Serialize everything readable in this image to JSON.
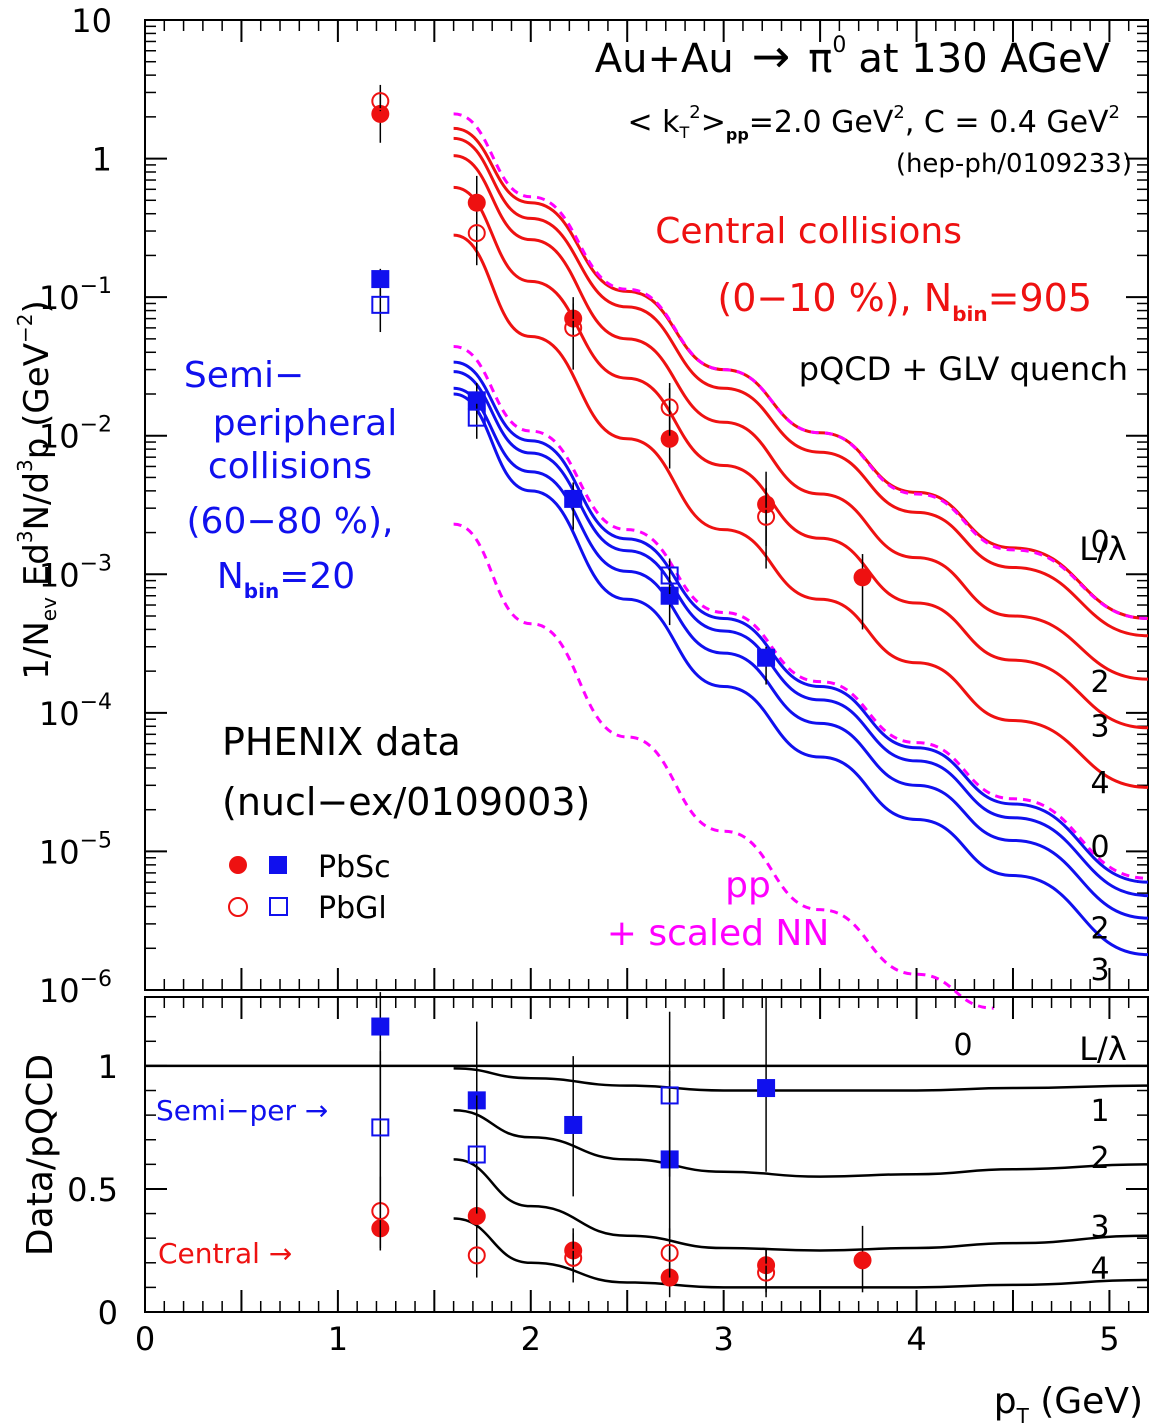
{
  "chart_data": [
    {
      "type": "scatter",
      "yscale": "log",
      "ylim_exp": [
        -6,
        1
      ],
      "xlim": [
        0,
        5.2
      ],
      "title": "Au+Au → π⁰ at 130 AGeV",
      "title_parts": {
        "lhs": "Au+Au",
        "arrow": "→",
        "particle": "π",
        "particle_sup": "0",
        "rest": "at 130 AGeV"
      },
      "kt_parts": {
        "open": "< k",
        "sub": "T",
        "sup": "2",
        "close": ">",
        "pp": "pp",
        "val": "=2.0 GeV",
        "val_sup": "2",
        "mid": ", C = 0.4 GeV",
        "end_sup": "2"
      },
      "ref_theory": "(hep-ph/0109233)",
      "ylabel": {
        "a": "1/N",
        "a_sub": "ev",
        "b": "  Ed",
        "b_sup": "3",
        "c": "N/d",
        "c_sup": "3",
        "d": "p  (GeV",
        "d_sup": "−2",
        "e": ")"
      },
      "y_tick_labels": [
        {
          "exp": 1,
          "base": "10",
          "sup": ""
        },
        {
          "exp": 0,
          "base": "1",
          "sup": ""
        },
        {
          "exp": -1,
          "base": "10",
          "sup": "−1"
        },
        {
          "exp": -2,
          "base": "10",
          "sup": "−2"
        },
        {
          "exp": -3,
          "base": "10",
          "sup": "−3"
        },
        {
          "exp": -4,
          "base": "10",
          "sup": "−4"
        },
        {
          "exp": -5,
          "base": "10",
          "sup": "−5"
        },
        {
          "exp": -6,
          "base": "10",
          "sup": "−6"
        }
      ],
      "annotations": {
        "central_line1": "Central collisions",
        "central_line2_a": "(0−10 %), N",
        "central_line2_sub": "bin",
        "central_line2_b": "=905",
        "model": "pQCD + GLV quench",
        "semi_1": "Semi−",
        "semi_2": "peripheral",
        "semi_3": "collisions",
        "semi_4": "(60−80 %),",
        "semi_5a": "N",
        "semi_5sub": "bin",
        "semi_5b": "=20",
        "phenix": "PHENIX data",
        "phenix_ref": "(nucl−ex/0109003)",
        "legend_pbsc": "PbSc",
        "legend_pbgl": "PbGl",
        "pp_1": "pp",
        "pp_2": "+ scaled NN",
        "l_lambda": "L/λ",
        "curve_labels": [
          {
            "text": "0",
            "y_exp": -2.76
          },
          {
            "text": "2",
            "y_exp": -3.77
          },
          {
            "text": "3",
            "y_exp": -4.09
          },
          {
            "text": "4",
            "y_exp": -4.5
          },
          {
            "text": "0",
            "y_exp": -4.96
          },
          {
            "text": "2",
            "y_exp": -5.55
          },
          {
            "text": "3",
            "y_exp": -5.85
          }
        ]
      },
      "colors": {
        "central": "#ee1111",
        "semi": "#1010ee",
        "pp": "#ff00ff",
        "axis": "#000000"
      },
      "series": [
        {
          "name": "Central PbSc",
          "marker": "filled-circle",
          "color": "#ee1111",
          "points": [
            {
              "x": 1.22,
              "y": 2.1,
              "lo": 1.3,
              "hi": 3.4
            },
            {
              "x": 1.72,
              "y": 0.48,
              "lo": 0.3,
              "hi": 0.75
            },
            {
              "x": 2.22,
              "y": 0.07,
              "lo": 0.05,
              "hi": 0.1
            },
            {
              "x": 2.72,
              "y": 0.0095,
              "lo": 0.0058,
              "hi": 0.022
            },
            {
              "x": 3.22,
              "y": 0.0032,
              "lo": 0.0011,
              "hi": 0.0055
            },
            {
              "x": 3.72,
              "y": 0.00095,
              "lo": 0.0004,
              "hi": 0.0014
            }
          ]
        },
        {
          "name": "Central PbGl",
          "marker": "open-circle",
          "color": "#ee1111",
          "points": [
            {
              "x": 1.22,
              "y": 2.6,
              "lo": 2.2,
              "hi": 3.1
            },
            {
              "x": 1.72,
              "y": 0.29,
              "lo": 0.17,
              "hi": 0.4
            },
            {
              "x": 2.22,
              "y": 0.06,
              "lo": 0.03,
              "hi": 0.09
            },
            {
              "x": 2.72,
              "y": 0.016,
              "lo": 0.01,
              "hi": 0.024
            },
            {
              "x": 3.22,
              "y": 0.0026,
              "lo": 0.0016,
              "hi": 0.0042
            }
          ]
        },
        {
          "name": "Semi-peripheral PbSc",
          "marker": "filled-square",
          "color": "#1010ee",
          "points": [
            {
              "x": 1.22,
              "y": 0.135,
              "lo": 0.1,
              "hi": 0.16
            },
            {
              "x": 1.72,
              "y": 0.018,
              "lo": 0.012,
              "hi": 0.024
            },
            {
              "x": 2.22,
              "y": 0.0035,
              "lo": 0.0021,
              "hi": 0.0046
            },
            {
              "x": 2.72,
              "y": 0.0007,
              "lo": 0.00043,
              "hi": 0.00095
            },
            {
              "x": 3.22,
              "y": 0.00025,
              "lo": 0.00016,
              "hi": 0.0003
            }
          ]
        },
        {
          "name": "Semi-peripheral PbGl",
          "marker": "open-square",
          "color": "#1010ee",
          "points": [
            {
              "x": 1.22,
              "y": 0.088,
              "lo": 0.056,
              "hi": 0.115
            },
            {
              "x": 1.72,
              "y": 0.0135,
              "lo": 0.0095,
              "hi": 0.017
            },
            {
              "x": 2.72,
              "y": 0.00098,
              "lo": 0.00072,
              "hi": 0.0013
            }
          ]
        }
      ],
      "curves": [
        {
          "group": "central",
          "label": "0",
          "style": "solid",
          "x": [
            1.6,
            2.0,
            2.5,
            3.0,
            3.5,
            4.0,
            4.5,
            5.2
          ],
          "y": [
            1.65,
            0.48,
            0.11,
            0.03,
            0.0105,
            0.0039,
            0.00155,
            0.00048
          ]
        },
        {
          "group": "central",
          "label": "",
          "style": "solid",
          "x": [
            1.6,
            2.0,
            2.5,
            3.0,
            3.5,
            4.0,
            4.5,
            5.2
          ],
          "y": [
            1.4,
            0.37,
            0.085,
            0.022,
            0.0076,
            0.0028,
            0.00112,
            0.00036
          ]
        },
        {
          "group": "central",
          "label": "2",
          "style": "solid",
          "x": [
            1.6,
            2.0,
            2.5,
            3.0,
            3.5,
            4.0,
            4.5,
            5.2
          ],
          "y": [
            1.05,
            0.26,
            0.05,
            0.0125,
            0.0038,
            0.00132,
            0.0005,
            0.000175
          ]
        },
        {
          "group": "central",
          "label": "3",
          "style": "solid",
          "x": [
            1.6,
            2.0,
            2.5,
            3.0,
            3.5,
            4.0,
            4.5,
            5.2
          ],
          "y": [
            0.62,
            0.13,
            0.026,
            0.0061,
            0.00182,
            0.00062,
            0.00024,
            7.8e-05
          ]
        },
        {
          "group": "central",
          "label": "4",
          "style": "solid",
          "x": [
            1.6,
            2.0,
            2.5,
            3.0,
            3.5,
            4.0,
            4.5,
            5.2
          ],
          "y": [
            0.28,
            0.052,
            0.0095,
            0.0021,
            0.00066,
            0.00023,
            8.8e-05,
            2.9e-05
          ]
        },
        {
          "group": "central",
          "label": "pp",
          "style": "dashed",
          "x": [
            1.6,
            2.0,
            2.5,
            3.0,
            3.5,
            4.0,
            4.5,
            5.2
          ],
          "y": [
            2.1,
            0.53,
            0.114,
            0.03,
            0.0105,
            0.0038,
            0.0015,
            0.00048
          ]
        },
        {
          "group": "semi",
          "label": "0",
          "style": "solid",
          "x": [
            1.6,
            2.0,
            2.5,
            3.0,
            3.5,
            4.0,
            4.5,
            5.2
          ],
          "y": [
            0.034,
            0.0092,
            0.0018,
            0.00048,
            0.000155,
            5.6e-05,
            2.2e-05,
            6e-06
          ]
        },
        {
          "group": "semi",
          "label": "",
          "style": "solid",
          "x": [
            1.6,
            2.0,
            2.5,
            3.0,
            3.5,
            4.0,
            4.5,
            5.2
          ],
          "y": [
            0.029,
            0.0075,
            0.00148,
            0.00039,
            0.000124,
            4.5e-05,
            1.75e-05,
            4.8e-06
          ]
        },
        {
          "group": "semi",
          "label": "2",
          "style": "solid",
          "x": [
            1.6,
            2.0,
            2.5,
            3.0,
            3.5,
            4.0,
            4.5,
            5.2
          ],
          "y": [
            0.022,
            0.0055,
            0.00105,
            0.00027,
            8.4e-05,
            3e-05,
            1.2e-05,
            3.3e-06
          ]
        },
        {
          "group": "semi",
          "label": "3",
          "style": "solid",
          "x": [
            1.6,
            2.0,
            2.5,
            3.0,
            3.5,
            4.0,
            4.5,
            5.2
          ],
          "y": [
            0.02,
            0.004,
            0.00066,
            0.000155,
            4.8e-05,
            1.7e-05,
            6.7e-06,
            1.8e-06
          ]
        },
        {
          "group": "semi",
          "label": "pp",
          "style": "dashed",
          "x": [
            1.6,
            2.0,
            2.5,
            3.0,
            3.5,
            4.0,
            4.5,
            5.2
          ],
          "y": [
            0.044,
            0.0108,
            0.0021,
            0.00053,
            0.000168,
            6.1e-05,
            2.4e-05,
            6.4e-06
          ]
        },
        {
          "group": "pp",
          "label": "pp + scaled NN",
          "style": "dashed",
          "x": [
            1.6,
            2.0,
            2.5,
            3.0,
            3.5,
            4.0,
            4.4
          ],
          "y": [
            0.0023,
            0.00044,
            6.7e-05,
            1.4e-05,
            3.8e-06,
            1.3e-06,
            7.4e-07
          ]
        }
      ]
    },
    {
      "type": "scatter",
      "xlabel_a": "p",
      "xlabel_sub": "T",
      "xlabel_b": " (GeV)",
      "ylabel": "Data/pQCD",
      "xlim": [
        0,
        5.2
      ],
      "ylim": [
        0,
        1.28
      ],
      "x_ticks": [
        "0",
        "1",
        "2",
        "3",
        "4",
        "5"
      ],
      "y_ticks": [
        "0",
        "0.5",
        "1"
      ],
      "annotations": {
        "semi_per": "Semi−per →",
        "central": "Central →",
        "l_lambda": "L/λ",
        "curve_labels": [
          {
            "text": "0",
            "y": 1.09
          },
          {
            "text": "1",
            "y": 0.82
          },
          {
            "text": "2",
            "y": 0.63
          },
          {
            "text": "3",
            "y": 0.35
          },
          {
            "text": "4",
            "y": 0.18
          }
        ]
      },
      "series": [
        {
          "name": "Central PbSc",
          "marker": "filled-circle",
          "color": "#ee1111",
          "points": [
            {
              "x": 1.22,
              "y": 0.34,
              "lo": 0.26,
              "hi": 0.44
            },
            {
              "x": 1.72,
              "y": 0.39,
              "lo": 0.3,
              "hi": 0.5
            },
            {
              "x": 2.22,
              "y": 0.25,
              "lo": 0.15,
              "hi": 0.34
            },
            {
              "x": 2.72,
              "y": 0.14,
              "lo": 0.06,
              "hi": 0.26
            },
            {
              "x": 3.22,
              "y": 0.19,
              "lo": 0.06,
              "hi": 0.26
            },
            {
              "x": 3.72,
              "y": 0.21,
              "lo": 0.08,
              "hi": 0.35
            }
          ]
        },
        {
          "name": "Central PbGl",
          "marker": "open-circle",
          "color": "#ee1111",
          "points": [
            {
              "x": 1.22,
              "y": 0.41,
              "lo": 0.25,
              "hi": 0.55
            },
            {
              "x": 1.72,
              "y": 0.23,
              "lo": 0.14,
              "hi": 0.32
            },
            {
              "x": 2.22,
              "y": 0.22,
              "lo": 0.12,
              "hi": 0.32
            },
            {
              "x": 2.72,
              "y": 0.24,
              "lo": 0.14,
              "hi": 0.34
            },
            {
              "x": 3.22,
              "y": 0.16,
              "lo": 0.08,
              "hi": 0.26
            }
          ]
        },
        {
          "name": "Semi-peripheral PbSc",
          "marker": "filled-square",
          "color": "#1010ee",
          "points": [
            {
              "x": 1.22,
              "y": 1.16,
              "lo": 0.82,
              "hi": 1.3
            },
            {
              "x": 1.72,
              "y": 0.86,
              "lo": 0.55,
              "hi": 1.18
            },
            {
              "x": 2.22,
              "y": 0.76,
              "lo": 0.47,
              "hi": 1.04
            },
            {
              "x": 2.72,
              "y": 0.62,
              "lo": 0.3,
              "hi": 0.98
            },
            {
              "x": 3.22,
              "y": 0.91,
              "lo": 0.57,
              "hi": 1.28
            }
          ]
        },
        {
          "name": "Semi-peripheral PbGl",
          "marker": "open-square",
          "color": "#1010ee",
          "points": [
            {
              "x": 1.22,
              "y": 0.75,
              "lo": 0.44,
              "hi": 1.06
            },
            {
              "x": 1.72,
              "y": 0.64,
              "lo": 0.4,
              "hi": 0.88
            },
            {
              "x": 2.72,
              "y": 0.88,
              "lo": 0.55,
              "hi": 1.22
            }
          ]
        }
      ],
      "curves": [
        {
          "label": "0",
          "x": [
            0,
            5.2
          ],
          "y": [
            1.0,
            1.0
          ]
        },
        {
          "label": "1",
          "x": [
            1.6,
            2.0,
            2.5,
            3.0,
            3.5,
            4.0,
            4.5,
            5.2
          ],
          "y": [
            0.99,
            0.95,
            0.92,
            0.9,
            0.9,
            0.9,
            0.91,
            0.92
          ]
        },
        {
          "label": "2",
          "x": [
            1.6,
            2.0,
            2.5,
            3.0,
            3.5,
            4.0,
            4.5,
            5.2
          ],
          "y": [
            0.82,
            0.71,
            0.62,
            0.57,
            0.55,
            0.56,
            0.58,
            0.6
          ]
        },
        {
          "label": "3",
          "x": [
            1.6,
            2.0,
            2.5,
            3.0,
            3.5,
            4.0,
            4.5,
            5.2
          ],
          "y": [
            0.62,
            0.43,
            0.31,
            0.26,
            0.25,
            0.26,
            0.28,
            0.31
          ]
        },
        {
          "label": "4",
          "x": [
            1.6,
            2.0,
            2.5,
            3.0,
            3.5,
            4.0,
            4.5,
            5.2
          ],
          "y": [
            0.38,
            0.2,
            0.12,
            0.1,
            0.1,
            0.1,
            0.11,
            0.13
          ]
        }
      ]
    }
  ]
}
